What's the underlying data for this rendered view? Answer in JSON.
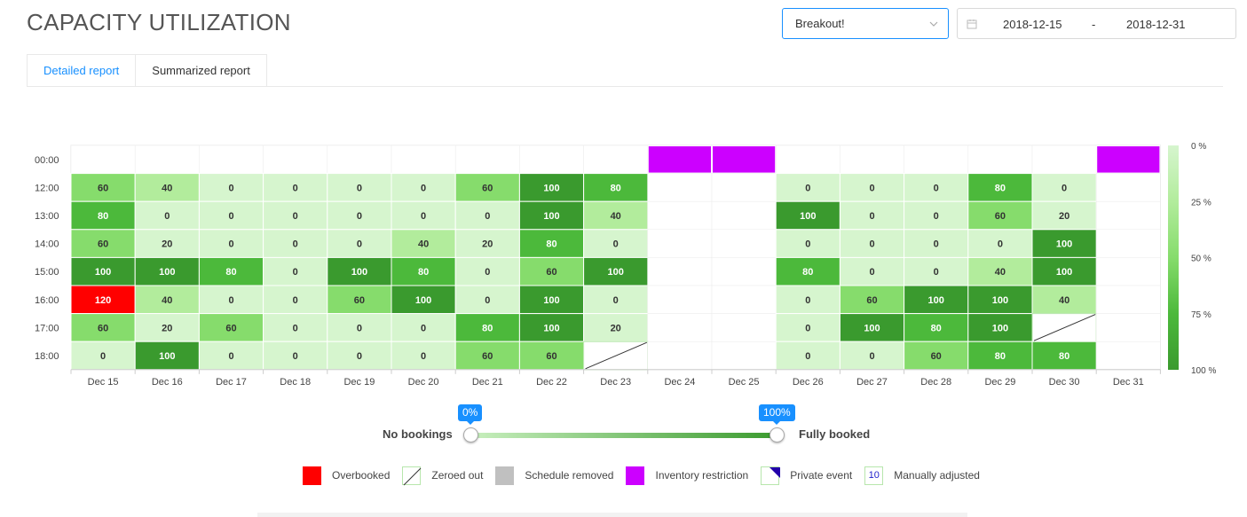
{
  "header": {
    "title": "CAPACITY UTILIZATION",
    "dropdown_value": "Breakout!",
    "date_start": "2018-12-15",
    "date_separator": "-",
    "date_end": "2018-12-31"
  },
  "tabs": [
    {
      "label": "Detailed report",
      "active": true
    },
    {
      "label": "Summarized report",
      "active": false
    }
  ],
  "chart_data": {
    "type": "heatmap",
    "categories": [
      "Dec 15",
      "Dec 16",
      "Dec 17",
      "Dec 18",
      "Dec 19",
      "Dec 20",
      "Dec 21",
      "Dec 22",
      "Dec 23",
      "Dec 24",
      "Dec 25",
      "Dec 26",
      "Dec 27",
      "Dec 28",
      "Dec 29",
      "Dec 30",
      "Dec 31"
    ],
    "rows": [
      "00:00",
      "12:00",
      "13:00",
      "14:00",
      "15:00",
      "16:00",
      "17:00",
      "18:00"
    ],
    "values": [
      [
        null,
        null,
        null,
        null,
        null,
        null,
        null,
        null,
        null,
        "inv",
        "inv",
        null,
        null,
        null,
        null,
        null,
        "inv"
      ],
      [
        60,
        40,
        0,
        0,
        0,
        0,
        60,
        100,
        80,
        null,
        null,
        0,
        0,
        0,
        80,
        0,
        null
      ],
      [
        80,
        0,
        0,
        0,
        0,
        0,
        0,
        100,
        40,
        null,
        null,
        100,
        0,
        0,
        60,
        20,
        null
      ],
      [
        60,
        20,
        0,
        0,
        0,
        40,
        20,
        80,
        0,
        null,
        null,
        0,
        0,
        0,
        0,
        100,
        null
      ],
      [
        100,
        100,
        80,
        0,
        100,
        80,
        0,
        60,
        100,
        null,
        null,
        80,
        0,
        0,
        40,
        100,
        null
      ],
      [
        120,
        40,
        0,
        0,
        60,
        100,
        0,
        100,
        0,
        null,
        null,
        0,
        60,
        100,
        100,
        40,
        null
      ],
      [
        60,
        20,
        60,
        0,
        0,
        0,
        80,
        100,
        20,
        null,
        null,
        0,
        100,
        80,
        100,
        "zero",
        null
      ],
      [
        0,
        100,
        0,
        0,
        0,
        0,
        60,
        60,
        "zero",
        null,
        null,
        0,
        0,
        60,
        80,
        80,
        null
      ]
    ],
    "color_scale_ticks": [
      "0 %",
      "25 %",
      "50 %",
      "75 %",
      "100 %"
    ],
    "colors": {
      "overbooked": "#ff0000",
      "inventory_restriction": "#cc00ff",
      "scale": [
        "#d6f5ce",
        "#b2ec9c",
        "#86dc6c",
        "#4cb93b",
        "#3a9a2e"
      ]
    }
  },
  "slider": {
    "left_label": "No bookings",
    "right_label": "Fully booked",
    "min_tip": "0%",
    "max_tip": "100%"
  },
  "legend": [
    {
      "label": "Overbooked"
    },
    {
      "label": "Zeroed out"
    },
    {
      "label": "Schedule removed"
    },
    {
      "label": "Inventory restriction"
    },
    {
      "label": "Private event"
    },
    {
      "label": "Manually adjusted",
      "sample": "10"
    }
  ]
}
